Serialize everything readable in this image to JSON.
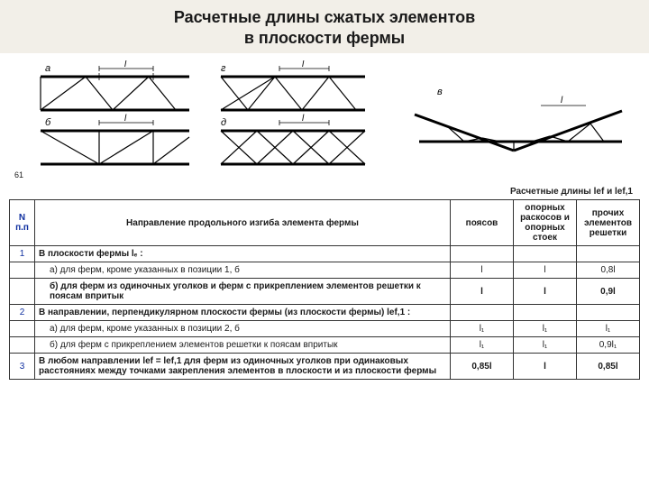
{
  "title_line1": "Расчетные длины сжатых элементов",
  "title_line2": "в плоскости фермы",
  "diagram": {
    "labels": {
      "a": "а",
      "b": "б",
      "g": "г",
      "d": "д",
      "v": "в",
      "l": "l"
    },
    "stroke": "#000000",
    "thick_w": 3,
    "thin_w": 1.2
  },
  "table": {
    "caption": "Расчетные длины lef  и lef,1",
    "head": {
      "n": "N п.п",
      "desc": "Направление продольного изгиба элемента фермы",
      "c1": "поясов",
      "c2": "опорных раскосов и опорных стоек",
      "c3": "прочих элементов решетки"
    },
    "rows": [
      {
        "n": "1",
        "desc": "В плоскости фермы lₑ :",
        "v1": "",
        "v2": "",
        "v3": "",
        "bold": true
      },
      {
        "n": "",
        "desc": "а) для ферм, кроме указанных в позиции 1, б",
        "v1": "l",
        "v2": "l",
        "v3": "0,8l",
        "sub": true
      },
      {
        "n": "",
        "desc": "б) для ферм из одиночных уголков и ферм с прикреплением элементов решетки к поясам впритык",
        "v1": "l",
        "v2": "l",
        "v3": "0,9l",
        "sub": true,
        "bold": true
      },
      {
        "n": "2",
        "desc": "В направлении, перпендикулярном плоскости фермы (из плоскости фермы) lef,1 :",
        "v1": "",
        "v2": "",
        "v3": "",
        "bold": true
      },
      {
        "n": "",
        "desc": "а) для ферм, кроме указанных в позиции 2, б",
        "v1": "l₁",
        "v2": "l₁",
        "v3": "l₁",
        "sub": true
      },
      {
        "n": "",
        "desc": "б) для ферм с прикреплением элементов решетки к поясам впритык",
        "v1": "l₁",
        "v2": "l₁",
        "v3": "0,9l₁",
        "sub": true
      },
      {
        "n": "3",
        "desc": "В любом направлении lef = lef,1 для ферм из одиночных уголков при одинаковых расстояниях между точками закрепления элементов в плоскости и из плоскости фермы",
        "v1": "0,85l",
        "v2": "l",
        "v3": "0,85l",
        "bold": true
      }
    ]
  },
  "side_mark": "61"
}
